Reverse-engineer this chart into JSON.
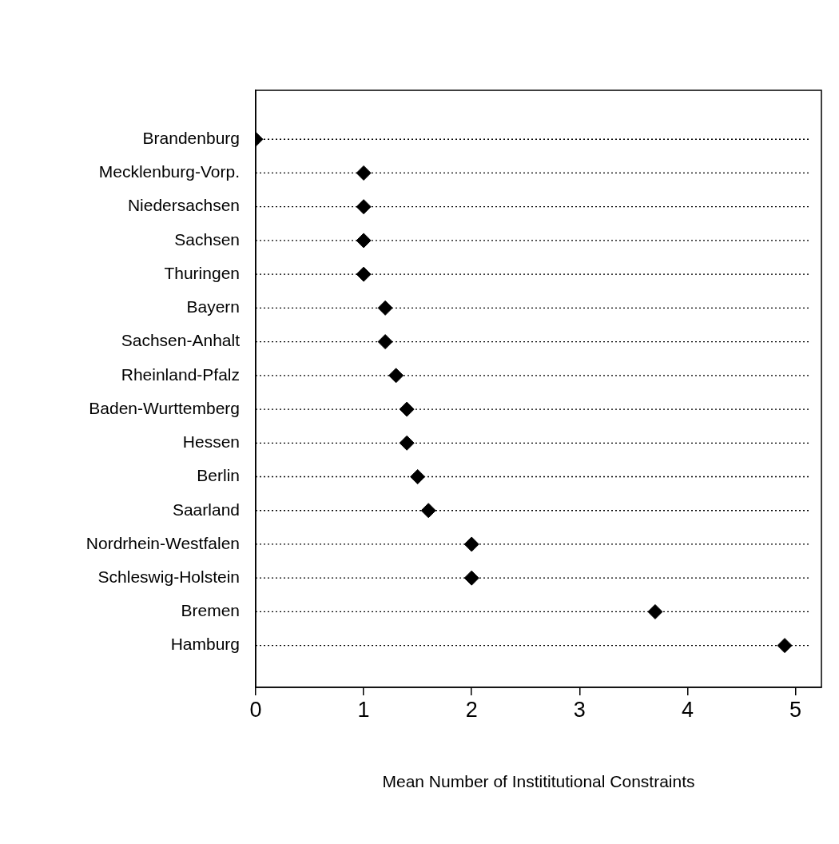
{
  "chart_data": {
    "type": "scatter",
    "orientation": "horizontal",
    "xlabel": "Mean Number of Instititutional Constraints",
    "categories": [
      "Brandenburg",
      "Mecklenburg-Vorp.",
      "Niedersachsen",
      "Sachsen",
      "Thuringen",
      "Bayern",
      "Sachsen-Anhalt",
      "Rheinland-Pfalz",
      "Baden-Wurttemberg",
      "Hessen",
      "Berlin",
      "Saarland",
      "Nordrhein-Westfalen",
      "Schleswig-Holstein",
      "Bremen",
      "Hamburg"
    ],
    "values": [
      0,
      1,
      1,
      1,
      1,
      1.2,
      1.2,
      1.3,
      1.4,
      1.4,
      1.5,
      1.6,
      2,
      2,
      3.7,
      4.9
    ],
    "color": "#000000",
    "marker": "diamond",
    "xlim": [
      0,
      5.24
    ],
    "xticks": [
      0,
      1,
      2,
      3,
      4,
      5
    ],
    "grid": "y"
  }
}
